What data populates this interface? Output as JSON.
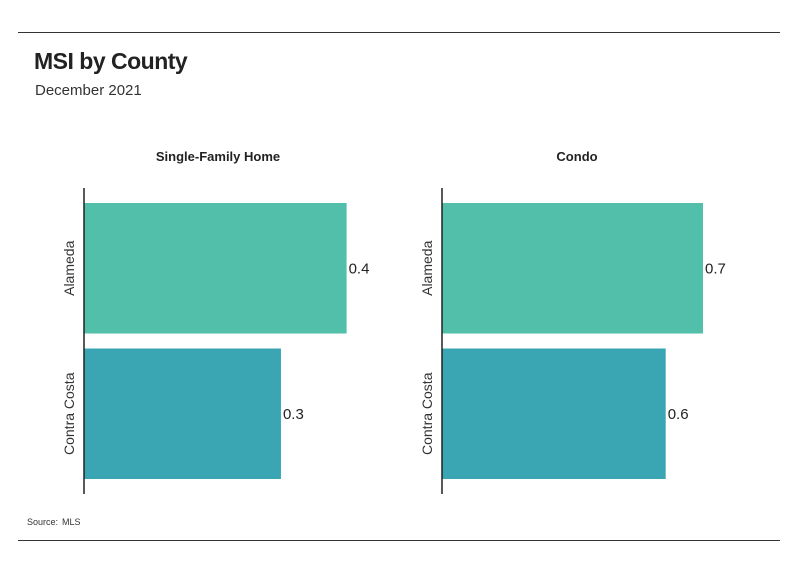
{
  "header": {
    "title": "MSI by County",
    "subtitle": "December 2021"
  },
  "footer": {
    "source_label": "Source:",
    "source_value": "MLS"
  },
  "colors": {
    "Alameda": "#52bfaa",
    "Contra Costa": "#3aa6b3",
    "axis": "#222222",
    "rule": "#333333"
  },
  "chart_data": [
    {
      "type": "bar",
      "orientation": "horizontal",
      "title": "Single-Family Home",
      "categories": [
        "Alameda",
        "Contra Costa"
      ],
      "values": [
        0.4,
        0.3
      ],
      "value_labels": [
        "0.4",
        "0.3"
      ],
      "xlim": [
        0,
        0.46
      ],
      "grid": false,
      "legend": "none"
    },
    {
      "type": "bar",
      "orientation": "horizontal",
      "title": "Condo",
      "categories": [
        "Alameda",
        "Contra Costa"
      ],
      "values": [
        0.7,
        0.6
      ],
      "value_labels": [
        "0.7",
        "0.6"
      ],
      "xlim": [
        0,
        0.81
      ],
      "grid": false,
      "legend": "none"
    }
  ]
}
